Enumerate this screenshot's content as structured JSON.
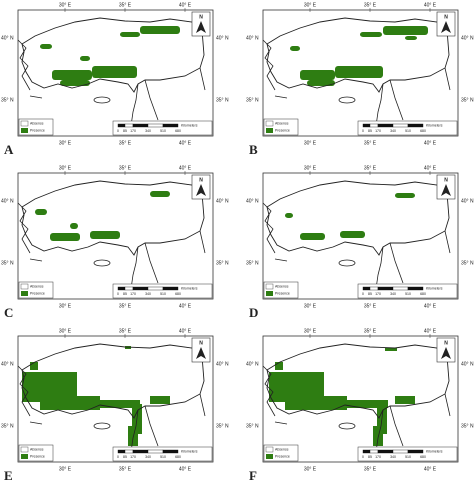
{
  "panels": [
    "A",
    "B",
    "C",
    "D",
    "E",
    "F"
  ],
  "map": {
    "lon_labels": [
      "30° E",
      "35° E",
      "40° E"
    ],
    "lat_labels": [
      "40° N",
      "35° N"
    ],
    "north": "N",
    "legend": [
      "Absence",
      "Presence"
    ],
    "scale_ticks": [
      "0",
      "85",
      "170",
      "340",
      "510",
      "680"
    ],
    "scale_unit": "Kilometers"
  }
}
